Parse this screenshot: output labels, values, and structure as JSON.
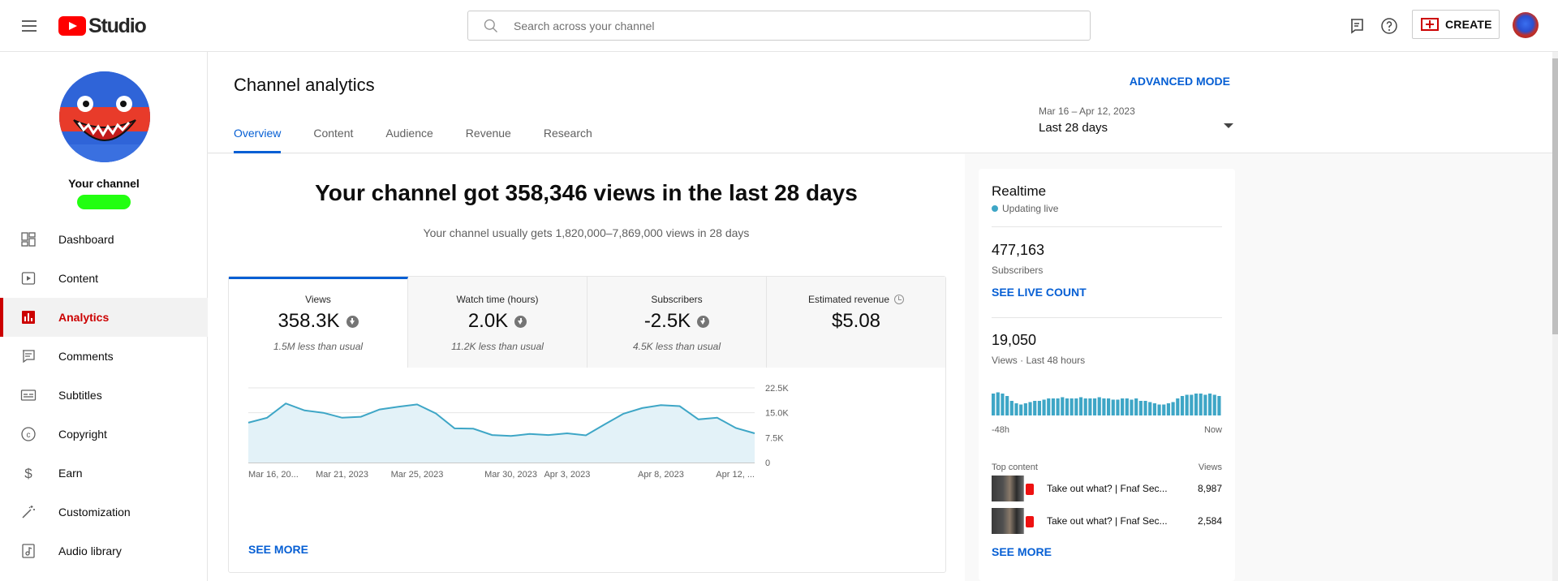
{
  "app": {
    "logo_text": "Studio"
  },
  "search": {
    "placeholder": "Search across your channel"
  },
  "header_actions": {
    "create_label": "CREATE"
  },
  "sidebar": {
    "channel_label": "Your channel",
    "items": [
      {
        "label": "Dashboard",
        "icon": "dashboard-icon"
      },
      {
        "label": "Content",
        "icon": "content-icon"
      },
      {
        "label": "Analytics",
        "icon": "analytics-icon",
        "active": true
      },
      {
        "label": "Comments",
        "icon": "comments-icon"
      },
      {
        "label": "Subtitles",
        "icon": "subtitles-icon"
      },
      {
        "label": "Copyright",
        "icon": "copyright-icon"
      },
      {
        "label": "Earn",
        "icon": "earn-icon"
      },
      {
        "label": "Customization",
        "icon": "customization-icon"
      },
      {
        "label": "Audio library",
        "icon": "audio-library-icon"
      }
    ]
  },
  "page": {
    "title": "Channel analytics",
    "advanced_mode": "ADVANCED MODE",
    "tabs": [
      "Overview",
      "Content",
      "Audience",
      "Revenue",
      "Research"
    ],
    "active_tab": "Overview",
    "date_range": "Mar 16 – Apr 12, 2023",
    "date_period": "Last 28 days"
  },
  "overview": {
    "headline": "Your channel got 358,346 views in the last 28 days",
    "subline": "Your channel usually gets 1,820,000–7,869,000 views in 28 days",
    "metrics": [
      {
        "title": "Views",
        "value": "358.3K",
        "note": "1.5M less than usual",
        "down": true
      },
      {
        "title": "Watch time (hours)",
        "value": "2.0K",
        "note": "11.2K less than usual",
        "down": true
      },
      {
        "title": "Subscribers",
        "value": "-2.5K",
        "note": "4.5K less than usual",
        "down": true
      },
      {
        "title": "Estimated revenue",
        "value": "$5.08",
        "note": "",
        "down": false
      }
    ],
    "see_more": "SEE MORE"
  },
  "chart_data": {
    "type": "area",
    "series": [
      {
        "values": [
          12000,
          13500,
          17800,
          15700,
          15000,
          13500,
          13800,
          16000,
          16800,
          17500,
          14800,
          10300,
          10200,
          8300,
          8000,
          8600,
          8300,
          8800,
          8200,
          11500,
          14700,
          16400,
          17300,
          17000,
          13000,
          13500,
          10400,
          8800
        ]
      }
    ],
    "x_tick_labels": [
      "Mar 16, 20...",
      "Mar 21, 2023",
      "Mar 25, 2023",
      "Mar 30, 2023",
      "Apr 3, 2023",
      "Apr 8, 2023",
      "Apr 12, ..."
    ],
    "y_tick_labels": [
      "22.5K",
      "15.0K",
      "7.5K",
      "0"
    ],
    "ylim": [
      0,
      22500
    ],
    "grid": true,
    "color": "#3ea6c6"
  },
  "realtime": {
    "title": "Realtime",
    "status": "Updating live",
    "subscribers": "477,163",
    "subscribers_label": "Subscribers",
    "live_count": "SEE LIVE COUNT",
    "views": "19,050",
    "views_label": "Views · Last 48 hours",
    "bars": [
      0.9,
      0.95,
      0.9,
      0.8,
      0.6,
      0.5,
      0.45,
      0.5,
      0.55,
      0.6,
      0.6,
      0.65,
      0.7,
      0.7,
      0.7,
      0.75,
      0.7,
      0.7,
      0.7,
      0.75,
      0.7,
      0.7,
      0.7,
      0.75,
      0.7,
      0.7,
      0.65,
      0.65,
      0.7,
      0.7,
      0.65,
      0.7,
      0.6,
      0.6,
      0.55,
      0.5,
      0.45,
      0.45,
      0.5,
      0.55,
      0.7,
      0.8,
      0.85,
      0.85,
      0.9,
      0.9,
      0.85,
      0.9,
      0.85,
      0.8
    ],
    "axis_left": "-48h",
    "axis_right": "Now",
    "top_content_label": "Top content",
    "views_header": "Views",
    "top_content": [
      {
        "title": "Take out what? | Fnaf Sec...",
        "views": "8,987"
      },
      {
        "title": "Take out what? | Fnaf Sec...",
        "views": "2,584"
      }
    ],
    "see_more": "SEE MORE"
  }
}
